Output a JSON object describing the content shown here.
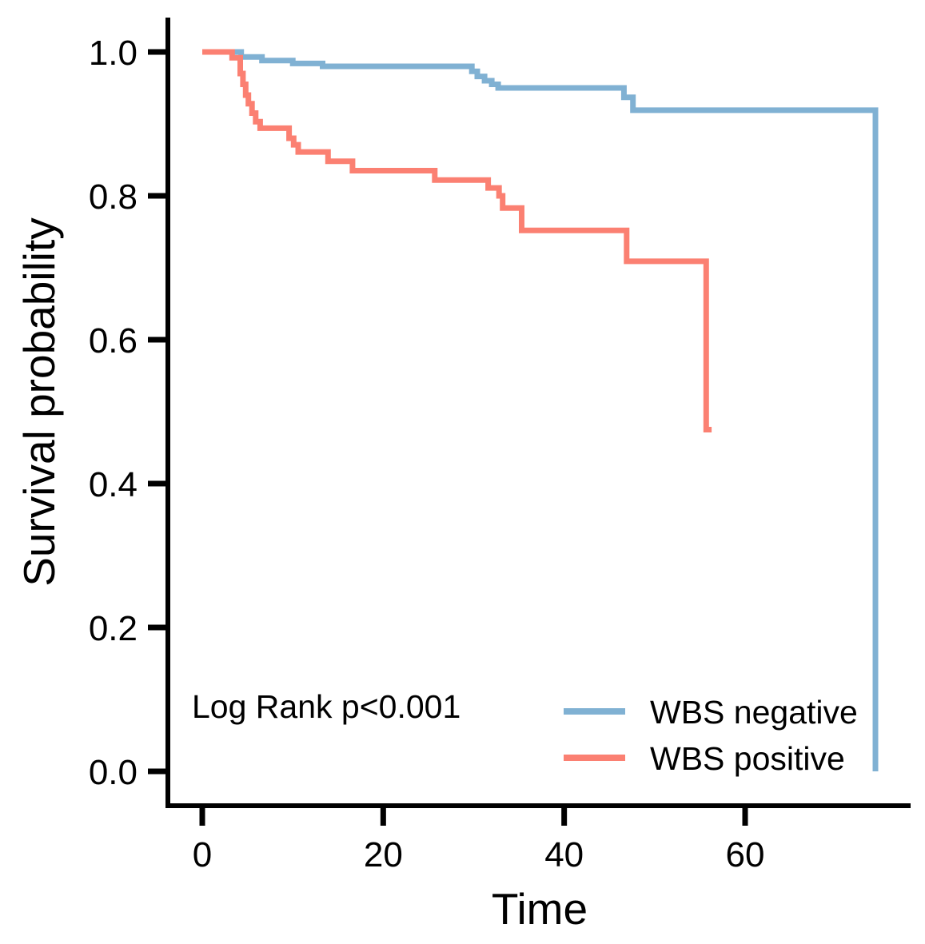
{
  "chart_data": {
    "type": "line",
    "subtype": "kaplan-meier-step",
    "title": "",
    "xlabel": "Time",
    "ylabel": "Survival probability",
    "xlim": [
      0,
      78
    ],
    "ylim": [
      0.0,
      1.0
    ],
    "grid": false,
    "x_ticks": [
      {
        "value": 0,
        "label": "0"
      },
      {
        "value": 20,
        "label": "20"
      },
      {
        "value": 40,
        "label": "40"
      },
      {
        "value": 60,
        "label": "60"
      }
    ],
    "y_ticks": [
      {
        "value": 1.0,
        "label": "1.0"
      },
      {
        "value": 0.8,
        "label": "0.8"
      },
      {
        "value": 0.6,
        "label": "0.6"
      },
      {
        "value": 0.4,
        "label": "0.4"
      },
      {
        "value": 0.2,
        "label": "0.2"
      },
      {
        "value": 0.0,
        "label": "0.0"
      }
    ],
    "annotation": "Log Rank p<0.001",
    "legend": {
      "position": "bottom-right",
      "entries": [
        {
          "label": "WBS negative",
          "color": "#80B1D3"
        },
        {
          "label": "WBS positive",
          "color": "#FB8072"
        }
      ]
    },
    "series": [
      {
        "name": "WBS negative",
        "color": "#80B1D3",
        "points": [
          [
            0,
            1.0
          ],
          [
            4.3,
            0.993
          ],
          [
            6.6,
            0.988
          ],
          [
            10,
            0.984
          ],
          [
            13.3,
            0.98
          ],
          [
            29.8,
            0.973
          ],
          [
            30.4,
            0.966
          ],
          [
            31.2,
            0.96
          ],
          [
            32.0,
            0.955
          ],
          [
            32.7,
            0.95
          ],
          [
            46.6,
            0.937
          ],
          [
            47.6,
            0.919
          ],
          [
            74.4,
            0.0
          ]
        ]
      },
      {
        "name": "WBS positive",
        "color": "#FB8072",
        "points": [
          [
            0,
            1.0
          ],
          [
            3.3,
            0.992
          ],
          [
            4.2,
            0.97
          ],
          [
            4.5,
            0.955
          ],
          [
            4.8,
            0.94
          ],
          [
            5.1,
            0.928
          ],
          [
            5.5,
            0.915
          ],
          [
            5.9,
            0.903
          ],
          [
            6.4,
            0.894
          ],
          [
            9.6,
            0.88
          ],
          [
            10.1,
            0.871
          ],
          [
            10.6,
            0.861
          ],
          [
            13.9,
            0.848
          ],
          [
            16.6,
            0.835
          ],
          [
            25.7,
            0.822
          ],
          [
            31.6,
            0.811
          ],
          [
            32.8,
            0.8
          ],
          [
            33.2,
            0.783
          ],
          [
            35.3,
            0.752
          ],
          [
            46.9,
            0.709
          ],
          [
            55.7,
            0.475
          ],
          [
            56.3,
            0.475
          ]
        ]
      }
    ]
  },
  "colors": {
    "axis": "#000000",
    "background": "#FFFFFF",
    "wbs_negative": "#80B1D3",
    "wbs_positive": "#FB8072"
  }
}
